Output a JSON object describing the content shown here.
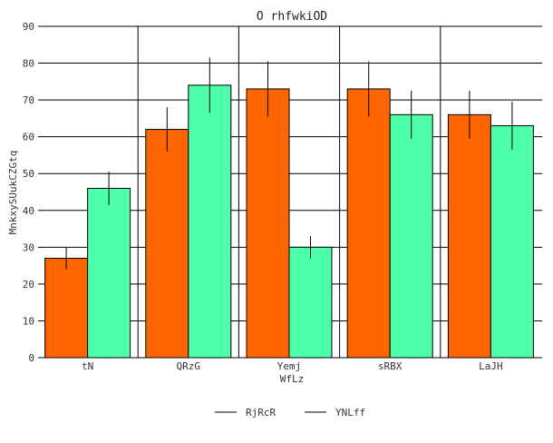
{
  "chart_data": {
    "type": "bar",
    "title": "O rhfwkiOD",
    "xlabel": "WfLz",
    "ylabel": "MnkxySUukCZGtq",
    "categories": [
      "tN",
      "QRzG",
      "Yemj",
      "sRBX",
      "LaJH"
    ],
    "series": [
      {
        "name": "RjRcR",
        "color": "#ff6600",
        "values": [
          27,
          62,
          73,
          73,
          66
        ],
        "errors": [
          3,
          6,
          7.5,
          7.5,
          6.5
        ]
      },
      {
        "name": "YNLff",
        "color": "#4dffaa",
        "values": [
          46,
          74,
          30,
          66,
          63
        ],
        "errors": [
          4.5,
          7.5,
          3,
          6.5,
          6.5
        ]
      }
    ],
    "ylim": [
      0,
      90
    ],
    "yticks": [
      0,
      10,
      20,
      30,
      40,
      50,
      60,
      70,
      80,
      90
    ],
    "grid": {
      "horizontal": true,
      "vertical": true
    },
    "legend_position": "bottom-center"
  }
}
